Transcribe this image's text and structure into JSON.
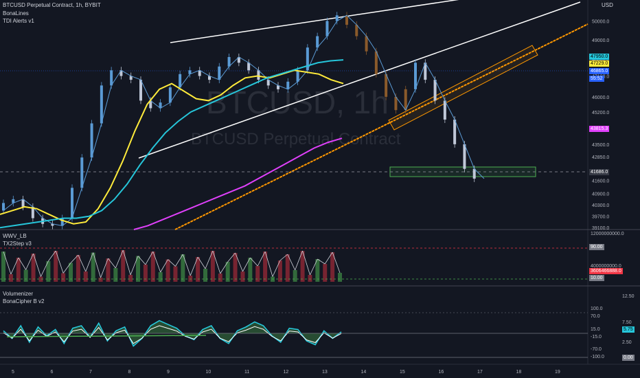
{
  "header": {
    "symbol_line": "BTCUSD Perpetual Contract, 1h, BYBIT",
    "indicator_1": "BonaLines",
    "indicator_2": "TDI Alerts v1",
    "currency": "USD"
  },
  "watermark": {
    "ticker": "BTCUSD, 1h",
    "name": "BTCUSD Perpetual Contract"
  },
  "pane2": {
    "label_1": "WWV_LB",
    "label_2": "TX2Step v3"
  },
  "pane3": {
    "label_1": "Volumenizer",
    "label_2": "BonaCipher B v2"
  },
  "price_tags": [
    {
      "text": "47950.0",
      "color": "#26c6da"
    },
    {
      "text": "47229.0",
      "color": "#ffeb3b"
    },
    {
      "text": "46865.0",
      "color": "#2962ff"
    },
    {
      "text": "55:52",
      "color": "#2962ff"
    },
    {
      "text": "43815.3",
      "color": "#e040fb"
    },
    {
      "text": "41686.0",
      "color": "#363a45"
    }
  ],
  "pane2_tags": [
    {
      "text": "90.00",
      "color": "#787b86"
    },
    {
      "text": "3606466888.0",
      "color": "#f23645"
    },
    {
      "text": "10.00",
      "color": "#787b86"
    }
  ],
  "pane3_tags": [
    {
      "text": "5.75",
      "color": "#26c6da"
    },
    {
      "text": "0.00",
      "color": "#787b86"
    }
  ],
  "chart_data": [
    {
      "type": "line",
      "title": "BTCUSD Perpetual Contract, 1h, BYBIT",
      "x_ticks": [
        "5",
        "6",
        "7",
        "8",
        "9",
        "10",
        "11",
        "12",
        "13",
        "14",
        "15",
        "16",
        "17",
        "18",
        "19"
      ],
      "y_ticks": [
        50000,
        49000,
        48000,
        47100,
        46000,
        45200,
        44400,
        43500,
        42850,
        42100,
        41600,
        40900,
        40300,
        39700,
        39100
      ],
      "ylim": [
        39000,
        50600
      ],
      "series": [
        {
          "values": [
            40000,
            40400,
            40600,
            40200,
            39600,
            39300,
            39200,
            39600,
            41200,
            42800,
            44600,
            46600,
            47400,
            47100,
            46900,
            45800,
            45400,
            45700,
            46500,
            47200,
            47400,
            47100,
            46900,
            47600,
            48100,
            47800,
            47400,
            46900,
            46600,
            46400,
            46800,
            47400,
            48600,
            49200,
            50000,
            50300,
            49800,
            49200,
            48400,
            47200,
            46000,
            45300,
            46400,
            47800,
            46900,
            45800,
            44800,
            43500,
            42200,
            41686
          ]
        },
        {
          "values": [
            39800,
            40000,
            40200,
            40100,
            39800,
            39500,
            39300,
            39400,
            40100,
            41200,
            42600,
            44200,
            45600,
            46400,
            46700,
            46300,
            45900,
            45800,
            46100,
            46600,
            47000,
            47100,
            47000,
            47200,
            47400,
            47300,
            47200,
            46900,
            46700
          ]
        },
        {
          "values": [
            39100,
            39200,
            39300,
            39400,
            39500,
            39600,
            39600,
            39700,
            40000,
            40600,
            41400,
            42400,
            43300,
            44100,
            44700,
            45200,
            45500,
            45800,
            46100,
            46400,
            46700,
            47000,
            47200,
            47400,
            47600,
            47800,
            47900,
            47950
          ]
        },
        {
          "values": [
            39000,
            39200,
            39500,
            39800,
            40100,
            40400,
            40700,
            41000,
            41300,
            41700,
            42100,
            42500,
            42900,
            43300,
            43600,
            43815.3
          ]
        }
      ]
    },
    {
      "type": "bar",
      "title": "TX2Step v3",
      "ylim": [
        0,
        100
      ],
      "values": [
        88,
        22,
        70,
        35,
        82,
        15,
        60,
        90,
        25,
        55,
        78,
        30,
        85,
        12,
        68,
        40,
        92,
        20,
        75,
        50,
        88,
        28,
        65,
        45,
        80,
        18,
        72,
        38,
        90,
        24,
        58,
        84,
        30,
        70,
        46,
        88,
        15,
        62,
        80,
        34,
        90,
        20,
        66,
        52,
        86,
        26
      ]
    },
    {
      "type": "line",
      "title": "BonaCipher B v2",
      "ylim": [
        -100,
        100
      ],
      "series": [
        {
          "values": [
            10,
            -20,
            30,
            -35,
            25,
            -10,
            15,
            -40,
            20,
            30,
            -15,
            40,
            -30,
            10,
            25,
            -50,
            -20,
            30,
            50,
            35,
            20,
            -10,
            -25,
            15,
            30,
            -20,
            -40,
            10,
            25,
            45,
            30,
            -10,
            -35,
            20,
            15,
            -30,
            -45,
            10,
            -20,
            5.75
          ]
        }
      ]
    }
  ]
}
